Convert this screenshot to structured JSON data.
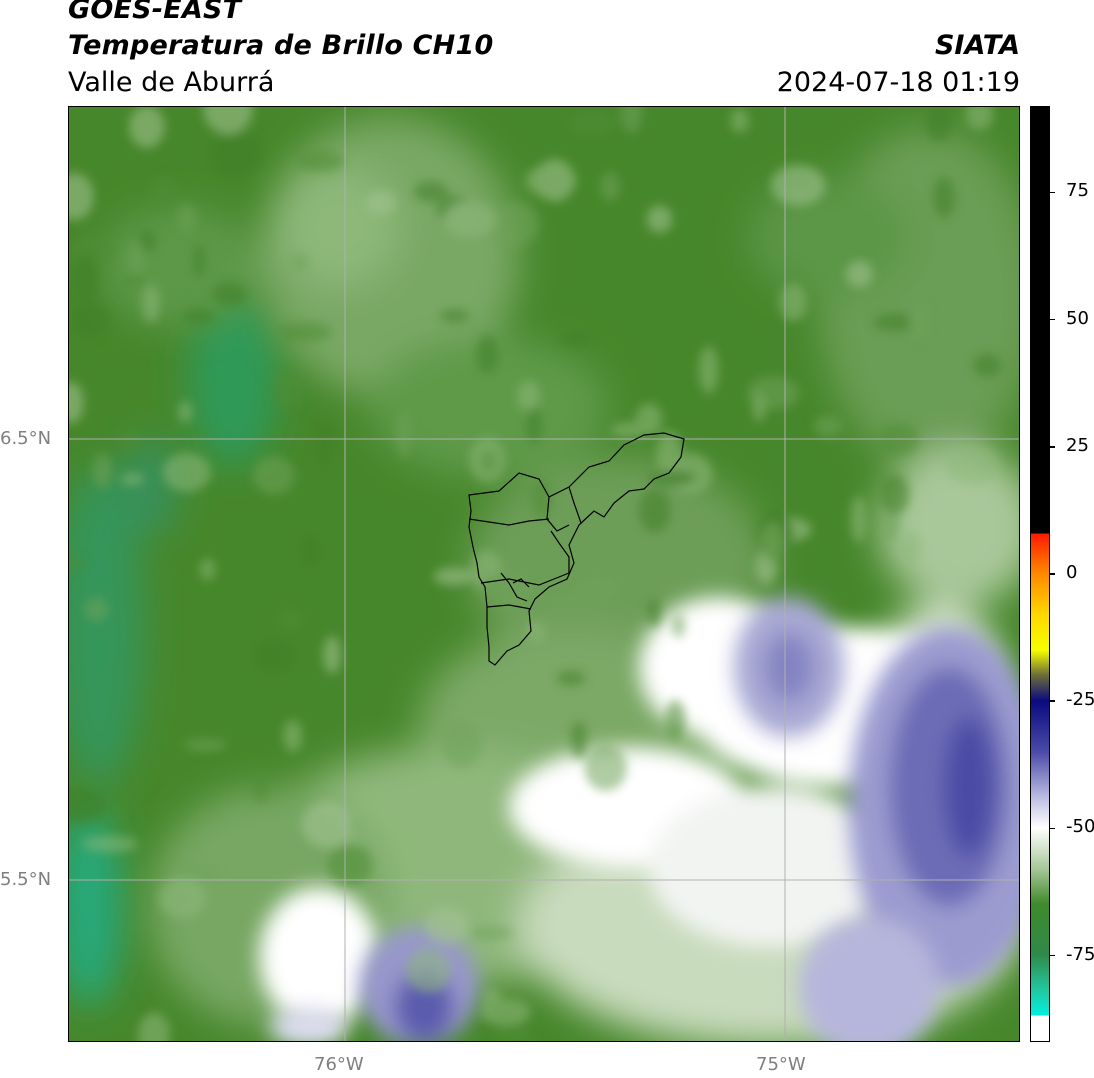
{
  "header": {
    "satellite": "GOES-EAST",
    "product": "Temperatura de Brillo CH10",
    "region": "Valle de Aburrá",
    "brand": "SIATA",
    "timestamp": "2024-07-18 01:19"
  },
  "map": {
    "lon_labels": [
      "76°W",
      "75°W"
    ],
    "lat_labels": [
      "6.5°N",
      "5.5°N"
    ],
    "gridline_color": "#b0b0b0"
  },
  "colorbar": {
    "ticks": [
      "75",
      "50",
      "25",
      "0",
      "-25",
      "-50",
      "-75"
    ],
    "tick_values": [
      75,
      50,
      25,
      0,
      -25,
      -50,
      -75
    ],
    "range": [
      -92,
      92
    ],
    "stops": [
      {
        "v": 92,
        "c": "#000000"
      },
      {
        "v": 8,
        "c": "#000000"
      },
      {
        "v": 8,
        "c": "#ff1a00"
      },
      {
        "v": 0,
        "c": "#ff8a00"
      },
      {
        "v": -8,
        "c": "#ffd800"
      },
      {
        "v": -15,
        "c": "#f6ff00"
      },
      {
        "v": -20,
        "c": "#6b6b3a"
      },
      {
        "v": -25,
        "c": "#0a0a80"
      },
      {
        "v": -35,
        "c": "#4a4aa8"
      },
      {
        "v": -45,
        "c": "#c8c8e8"
      },
      {
        "v": -50,
        "c": "#ffffff"
      },
      {
        "v": -58,
        "c": "#a8c89a"
      },
      {
        "v": -65,
        "c": "#3f8a2a"
      },
      {
        "v": -75,
        "c": "#2e8a4a"
      },
      {
        "v": -82,
        "c": "#22c8a0"
      },
      {
        "v": -87,
        "c": "#00f0e0"
      },
      {
        "v": -87,
        "c": "#ffffff"
      },
      {
        "v": -92,
        "c": "#ffffff"
      }
    ]
  }
}
